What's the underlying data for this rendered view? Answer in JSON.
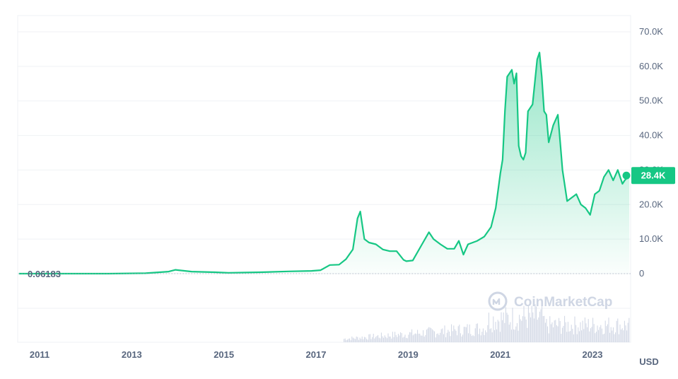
{
  "colors": {
    "line": "#16c784",
    "fill_top": "#16c784",
    "grid": "#eff2f5",
    "text": "#58667e",
    "volume": "#cfd6e4"
  },
  "watermark": {
    "text": "CoinMarketCap",
    "icon": "coinmarketcap-logo-icon"
  },
  "chart_data": {
    "type": "area",
    "title": "",
    "xlabel": "",
    "ylabel": "",
    "unit": "USD",
    "ylim": [
      0,
      75000
    ],
    "y_ticks": [
      {
        "value": 0,
        "label": "0"
      },
      {
        "value": 10000,
        "label": "10.0K"
      },
      {
        "value": 20000,
        "label": "20.0K"
      },
      {
        "value": 30000,
        "label": "30.0K"
      },
      {
        "value": 40000,
        "label": "40.0K"
      },
      {
        "value": 50000,
        "label": "50.0K"
      },
      {
        "value": 60000,
        "label": "60.0K"
      },
      {
        "value": 70000,
        "label": "70.0K"
      }
    ],
    "x_ticks": [
      "2011",
      "2013",
      "2015",
      "2017",
      "2019",
      "2021",
      "2023"
    ],
    "start_value_label": "0.06183",
    "current_value_label": "28.4K",
    "grid": true,
    "series": [
      {
        "x": [
          2010.55,
          2011.5,
          2012.5,
          2013.3,
          2013.8,
          2013.95,
          2014.3,
          2014.8,
          2015.1,
          2015.8,
          2016.4,
          2016.9,
          2017.1,
          2017.3,
          2017.5,
          2017.65,
          2017.8,
          2017.9,
          2017.96,
          2018.05,
          2018.15,
          2018.3,
          2018.45,
          2018.6,
          2018.75,
          2018.9,
          2018.96,
          2019.1,
          2019.3,
          2019.45,
          2019.55,
          2019.7,
          2019.85,
          2020.0,
          2020.1,
          2020.2,
          2020.3,
          2020.5,
          2020.65,
          2020.8,
          2020.9,
          2021.0,
          2021.05,
          2021.1,
          2021.15,
          2021.25,
          2021.3,
          2021.35,
          2021.4,
          2021.45,
          2021.5,
          2021.55,
          2021.6,
          2021.7,
          2021.8,
          2021.85,
          2021.9,
          2021.95,
          2022.0,
          2022.05,
          2022.15,
          2022.25,
          2022.3,
          2022.35,
          2022.45,
          2022.55,
          2022.65,
          2022.75,
          2022.85,
          2022.95,
          2023.05,
          2023.15,
          2023.25,
          2023.35,
          2023.45,
          2023.55,
          2023.65,
          2023.7,
          2023.8
        ],
        "values": [
          0.06,
          5,
          10,
          120,
          600,
          1100,
          600,
          400,
          250,
          400,
          650,
          800,
          1000,
          2500,
          2600,
          4200,
          7000,
          16000,
          18000,
          10000,
          9000,
          8500,
          7000,
          6500,
          6500,
          4000,
          3600,
          3800,
          8500,
          12000,
          10000,
          8500,
          7200,
          7200,
          9500,
          5500,
          8500,
          9500,
          10700,
          13500,
          19000,
          29000,
          33000,
          47000,
          57000,
          59000,
          55000,
          58000,
          37000,
          34000,
          33000,
          35000,
          47000,
          49000,
          62000,
          64000,
          57000,
          47000,
          46000,
          38000,
          43000,
          46000,
          38000,
          30000,
          21000,
          22000,
          23000,
          20000,
          19000,
          17000,
          23000,
          24000,
          28000,
          30000,
          27000,
          30000,
          26000,
          27000,
          28400
        ]
      }
    ]
  }
}
